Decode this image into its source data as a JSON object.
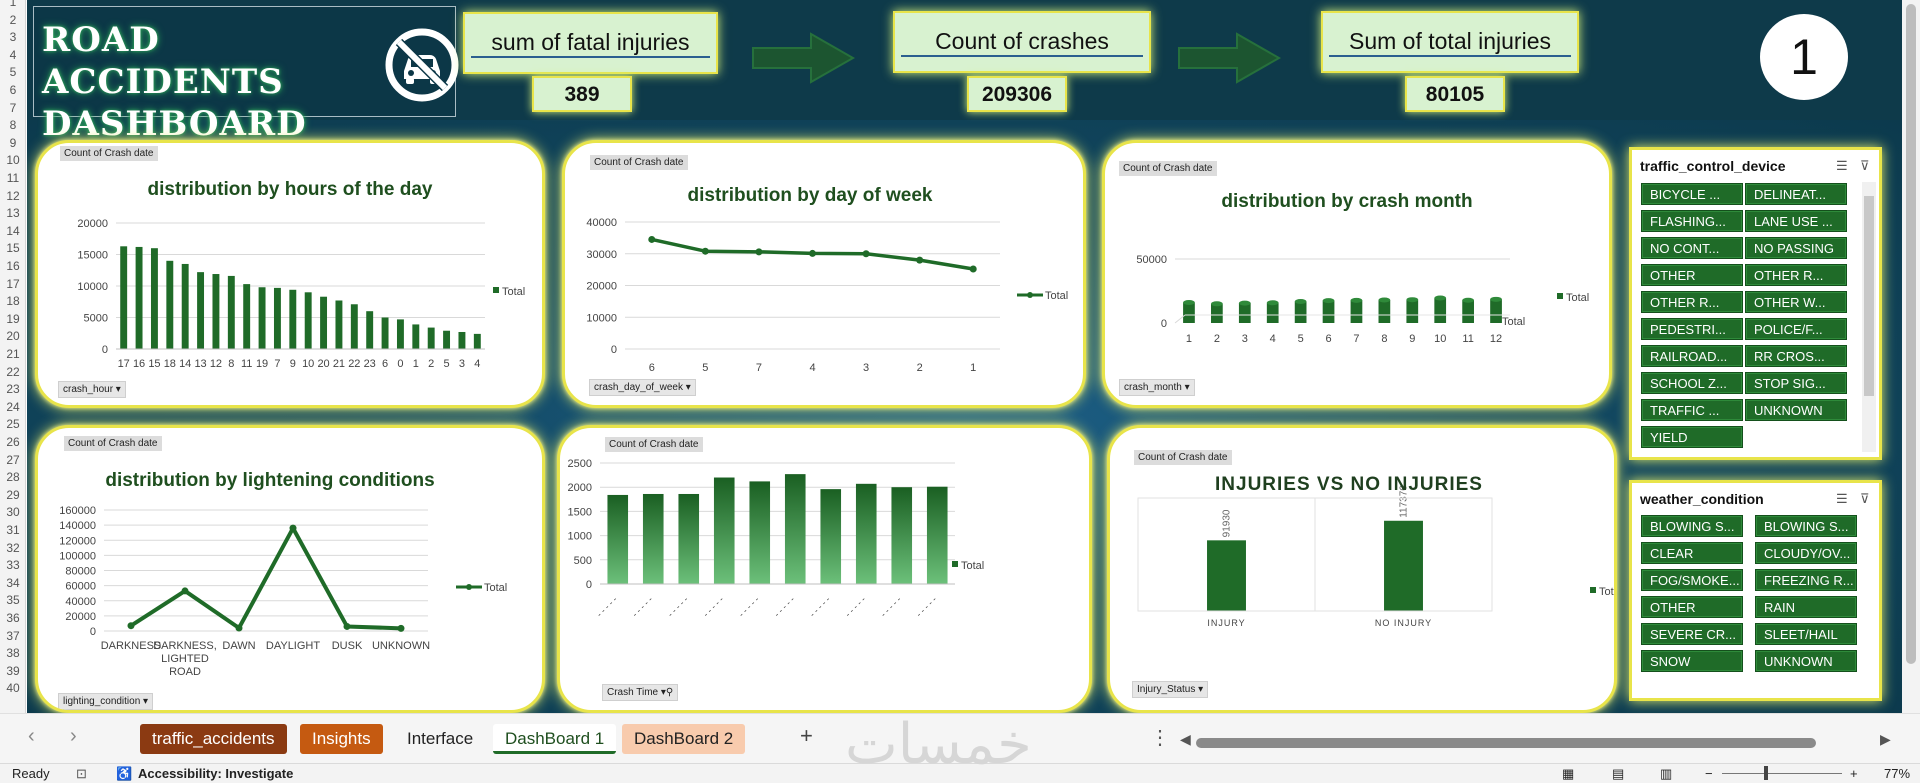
{
  "dashboard": {
    "title_line1": "ROAD ACCIDENTS",
    "title_line2": "DASHBOARD",
    "step_number": "1"
  },
  "kpis": [
    {
      "label": "sum of fatal injuries",
      "value": "389"
    },
    {
      "label": "Count of crashes",
      "value": "209306"
    },
    {
      "label": "Sum of total injuries",
      "value": "80105"
    }
  ],
  "charts": {
    "value_field": "Count of Crash date",
    "legend_label": "Total",
    "hours": {
      "title": "distribution by hours of the day",
      "field": "crash_hour"
    },
    "day_of_week": {
      "title": "distribution by day of week",
      "field": "crash_day_of_week"
    },
    "month": {
      "title": "distribution by crash month",
      "field": "crash_month",
      "axis_label": "Total"
    },
    "lighting": {
      "title": "distribution by lightening conditions",
      "field": "lighting_condition"
    },
    "crash_time": {
      "field": "Crash Time"
    },
    "injuries": {
      "title": "INJURIES   VS   NO INJURIES",
      "field": "Injury_Status"
    }
  },
  "chart_data": [
    {
      "type": "bar",
      "title": "distribution by hours of the day",
      "categories": [
        "17",
        "16",
        "15",
        "18",
        "14",
        "13",
        "12",
        "8",
        "11",
        "19",
        "7",
        "9",
        "10",
        "20",
        "21",
        "22",
        "23",
        "6",
        "0",
        "1",
        "2",
        "5",
        "3",
        "4"
      ],
      "series": [
        {
          "name": "Total",
          "values": [
            16300,
            16200,
            16000,
            14000,
            13500,
            12200,
            11900,
            11600,
            10300,
            9800,
            9700,
            9400,
            9000,
            8300,
            7700,
            7100,
            6000,
            5000,
            4700,
            3900,
            3400,
            2900,
            2700,
            2400
          ]
        }
      ],
      "ylim": [
        0,
        20000
      ],
      "yticks": [
        0,
        5000,
        10000,
        15000,
        20000
      ]
    },
    {
      "type": "line",
      "title": "distribution by day of week",
      "categories": [
        "6",
        "5",
        "7",
        "4",
        "3",
        "2",
        "1"
      ],
      "series": [
        {
          "name": "Total",
          "values": [
            34500,
            30800,
            30600,
            30100,
            30000,
            28000,
            25200
          ]
        }
      ],
      "ylim": [
        0,
        40000
      ],
      "yticks": [
        0,
        10000,
        20000,
        30000,
        40000
      ]
    },
    {
      "type": "bar",
      "title": "distribution by crash month",
      "categories": [
        "1",
        "2",
        "3",
        "4",
        "5",
        "6",
        "7",
        "8",
        "9",
        "10",
        "11",
        "12"
      ],
      "series": [
        {
          "name": "Total",
          "values": [
            16000,
            15000,
            15500,
            15800,
            16800,
            17500,
            17700,
            18000,
            18200,
            19500,
            17800,
            18500
          ]
        }
      ],
      "ylim": [
        0,
        50000
      ],
      "yticks": [
        0,
        50000
      ]
    },
    {
      "type": "line",
      "title": "distribution by lightening conditions",
      "categories": [
        "DARKNESS",
        "DARKNESS, LIGHTED ROAD",
        "DAWN",
        "DAYLIGHT",
        "DUSK",
        "UNKNOWN"
      ],
      "series": [
        {
          "name": "Total",
          "values": [
            7000,
            53000,
            4000,
            136000,
            6000,
            3500
          ]
        }
      ],
      "ylim": [
        0,
        160000
      ],
      "yticks": [
        0,
        20000,
        40000,
        60000,
        80000,
        100000,
        120000,
        140000,
        160000
      ]
    },
    {
      "type": "bar",
      "categories": [
        "1",
        "2",
        "3",
        "4",
        "5",
        "6",
        "7",
        "8",
        "9",
        "10"
      ],
      "series": [
        {
          "name": "Total",
          "values": [
            1840,
            1860,
            1860,
            2200,
            2120,
            2270,
            1960,
            2070,
            2000,
            2010
          ]
        }
      ],
      "ylim": [
        0,
        2500
      ],
      "yticks": [
        0,
        500,
        1000,
        1500,
        2000,
        2500
      ]
    },
    {
      "type": "bar",
      "title": "INJURIES   VS   NO INJURIES",
      "categories": [
        "INJURY",
        "NO INJURY"
      ],
      "series": [
        {
          "name": "Total",
          "values": [
            91930,
            117376
          ]
        }
      ],
      "ylim": [
        0,
        160000
      ]
    }
  ],
  "slicers": {
    "traffic": {
      "title": "traffic_control_device",
      "items": [
        "BICYCLE ...",
        "DELINEAT...",
        "FLASHING...",
        "LANE USE ...",
        "NO CONT...",
        "NO PASSING",
        "OTHER",
        "OTHER R...",
        "OTHER R...",
        "OTHER W...",
        "PEDESTRI...",
        "POLICE/F...",
        "RAILROAD...",
        "RR CROS...",
        "SCHOOL Z...",
        "STOP SIG...",
        "TRAFFIC ...",
        "UNKNOWN",
        "YIELD"
      ]
    },
    "weather": {
      "title": "weather_condition",
      "items": [
        "BLOWING S...",
        "BLOWING S...",
        "CLEAR",
        "CLOUDY/OV...",
        "FOG/SMOKE...",
        "FREEZING R...",
        "OTHER",
        "RAIN",
        "SEVERE CR...",
        "SLEET/HAIL",
        "SNOW",
        "UNKNOWN"
      ]
    }
  },
  "sheet_tabs": [
    {
      "label": "traffic_accidents",
      "color": "#8b3a12",
      "text": "#ffffff"
    },
    {
      "label": "Insights",
      "color": "#c55a11",
      "text": "#ffffff"
    },
    {
      "label": "Interface",
      "color": "#f5f5f5",
      "text": "#222222"
    },
    {
      "label": "DashBoard 1",
      "color": "#ffffff",
      "text": "#1f4f1f"
    },
    {
      "label": "DashBoard 2",
      "color": "#f8cbad",
      "text": "#222222"
    }
  ],
  "status": {
    "ready": "Ready",
    "accessibility": "Accessibility: Investigate",
    "zoom": "77%"
  },
  "colors": {
    "bar": "#1f6b28",
    "canvas": "#0d3a4a",
    "card_border": "#e8e44a"
  }
}
